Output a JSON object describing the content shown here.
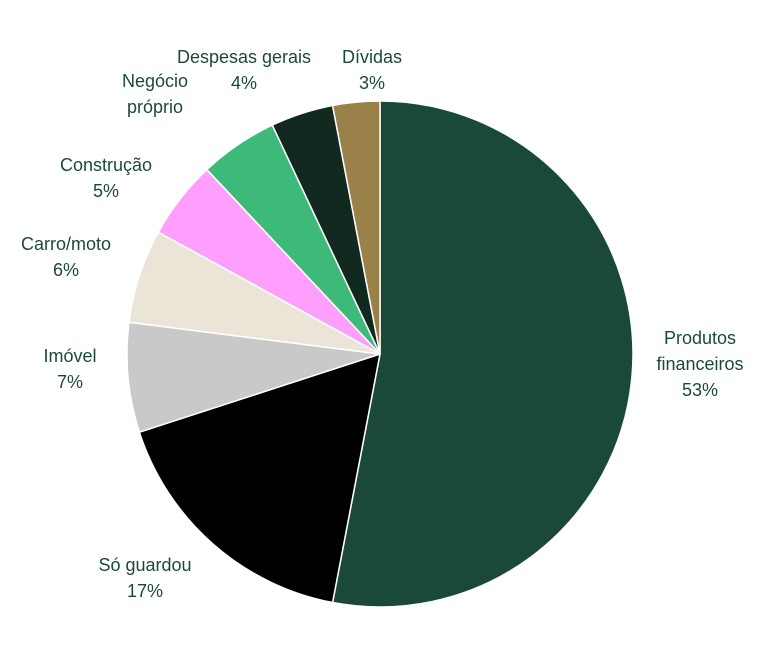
{
  "chart_data": {
    "type": "pie",
    "title": "",
    "start_angle_deg": 0,
    "direction": "clockwise",
    "slices": [
      {
        "label_lines": [
          "Produtos",
          "financeiros"
        ],
        "value_label": "53%",
        "value": 53,
        "color": "#1a4839"
      },
      {
        "label_lines": [
          "Só guardou"
        ],
        "value_label": "17%",
        "value": 17,
        "color": "#000000"
      },
      {
        "label_lines": [
          "Imóvel"
        ],
        "value_label": "7%",
        "value": 7,
        "color": "#c9c9c9"
      },
      {
        "label_lines": [
          "Carro/moto"
        ],
        "value_label": "6%",
        "value": 6,
        "color": "#ebe5d8"
      },
      {
        "label_lines": [
          "Construção"
        ],
        "value_label": "5%",
        "value": 5,
        "color": "#ff9ffd"
      },
      {
        "label_lines": [
          "Negócio",
          "próprio"
        ],
        "value_label": "",
        "value": 5,
        "color": "#3dba7a"
      },
      {
        "label_lines": [
          "Despesas gerais"
        ],
        "value_label": "4%",
        "value": 4,
        "color": "#12291f"
      },
      {
        "label_lines": [
          "Dívidas"
        ],
        "value_label": "3%",
        "value": 3,
        "color": "#9a8149"
      }
    ]
  }
}
